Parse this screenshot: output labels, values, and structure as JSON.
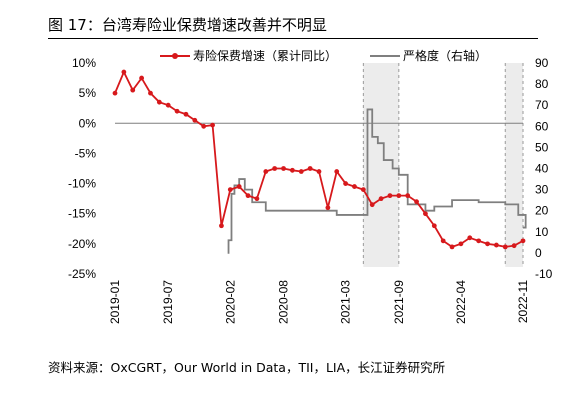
{
  "title": "图 17：台湾寿险业保费增速改善并不明显",
  "source": "资料来源：OxCGRT，Our  World in Data，TII，LIA，长江证券研究所",
  "colors": {
    "premium": "#d7191c",
    "stringency": "#7f7f7f",
    "shade": "#ececec",
    "axis": "#7f7f7f"
  },
  "chart_data": {
    "type": "line",
    "x_labels": [
      "2019-01",
      "2019-07",
      "2020-02",
      "2020-08",
      "2021-03",
      "2021-09",
      "2022-04",
      "2022-11"
    ],
    "x_range": [
      "2019-01",
      "2022-11"
    ],
    "y_left": {
      "ticks": [
        "10%",
        "5%",
        "0%",
        "-5%",
        "-10%",
        "-15%",
        "-20%",
        "-25%"
      ],
      "range": [
        -25,
        10
      ]
    },
    "y_right": {
      "ticks": [
        "90",
        "80",
        "70",
        "60",
        "50",
        "40",
        "30",
        "20",
        "10",
        "0",
        "-10"
      ],
      "range": [
        -10,
        90
      ]
    },
    "shaded_periods": [
      [
        "2021-05",
        "2021-09"
      ],
      [
        "2022-09",
        "2022-11"
      ]
    ],
    "series": [
      {
        "name": "寿险保费增速（累计同比）",
        "axis": "left",
        "marker": "circle",
        "points": [
          [
            "2019-01",
            5
          ],
          [
            "2019-02",
            8.5
          ],
          [
            "2019-03",
            5.5
          ],
          [
            "2019-04",
            7.5
          ],
          [
            "2019-05",
            5
          ],
          [
            "2019-06",
            3.5
          ],
          [
            "2019-07",
            3
          ],
          [
            "2019-08",
            2
          ],
          [
            "2019-09",
            1.5
          ],
          [
            "2019-10",
            0.5
          ],
          [
            "2019-11",
            -0.5
          ],
          [
            "2019-12",
            -0.3
          ],
          [
            "2020-01",
            -17
          ],
          [
            "2020-02",
            -11
          ],
          [
            "2020-03",
            -10.5
          ],
          [
            "2020-04",
            -12
          ],
          [
            "2020-05",
            -12.5
          ],
          [
            "2020-06",
            -8
          ],
          [
            "2020-07",
            -7.5
          ],
          [
            "2020-08",
            -7.5
          ],
          [
            "2020-09",
            -7.8
          ],
          [
            "2020-10",
            -8
          ],
          [
            "2020-11",
            -7.5
          ],
          [
            "2020-12",
            -8
          ],
          [
            "2021-01",
            -14
          ],
          [
            "2021-02",
            -8
          ],
          [
            "2021-03",
            -10
          ],
          [
            "2021-04",
            -10.5
          ],
          [
            "2021-05",
            -11
          ],
          [
            "2021-06",
            -13.5
          ],
          [
            "2021-07",
            -12.5
          ],
          [
            "2021-08",
            -12
          ],
          [
            "2021-09",
            -12
          ],
          [
            "2021-10",
            -12
          ],
          [
            "2021-11",
            -13
          ],
          [
            "2021-12",
            -15
          ],
          [
            "2022-01",
            -17
          ],
          [
            "2022-02",
            -19.5
          ],
          [
            "2022-03",
            -20.5
          ],
          [
            "2022-04",
            -20
          ],
          [
            "2022-05",
            -19
          ],
          [
            "2022-06",
            -19.5
          ],
          [
            "2022-07",
            -20
          ],
          [
            "2022-08",
            -20.2
          ],
          [
            "2022-09",
            -20.5
          ],
          [
            "2022-10",
            -20.3
          ],
          [
            "2022-11",
            -19.5
          ]
        ]
      },
      {
        "name": "严格度（右轴）",
        "axis": "right",
        "style": "step",
        "points": [
          [
            "2020-01-22",
            0
          ],
          [
            "2020-01-25",
            6
          ],
          [
            "2020-02-05",
            28
          ],
          [
            "2020-02-15",
            32
          ],
          [
            "2020-03-01",
            35
          ],
          [
            "2020-03-20",
            30
          ],
          [
            "2020-04-15",
            24
          ],
          [
            "2020-06-01",
            20
          ],
          [
            "2021-02-01",
            18
          ],
          [
            "2021-05-01",
            18
          ],
          [
            "2021-05-15",
            68
          ],
          [
            "2021-06-01",
            55
          ],
          [
            "2021-06-20",
            52
          ],
          [
            "2021-07-10",
            44
          ],
          [
            "2021-08-10",
            40
          ],
          [
            "2021-09-01",
            37
          ],
          [
            "2021-10-01",
            23
          ],
          [
            "2021-11-01",
            23
          ],
          [
            "2021-12-01",
            20
          ],
          [
            "2022-01-01",
            22
          ],
          [
            "2022-03-01",
            25
          ],
          [
            "2022-06-01",
            24
          ],
          [
            "2022-09-01",
            23
          ],
          [
            "2022-10-15",
            18
          ],
          [
            "2022-11-10",
            12
          ]
        ]
      }
    ]
  }
}
